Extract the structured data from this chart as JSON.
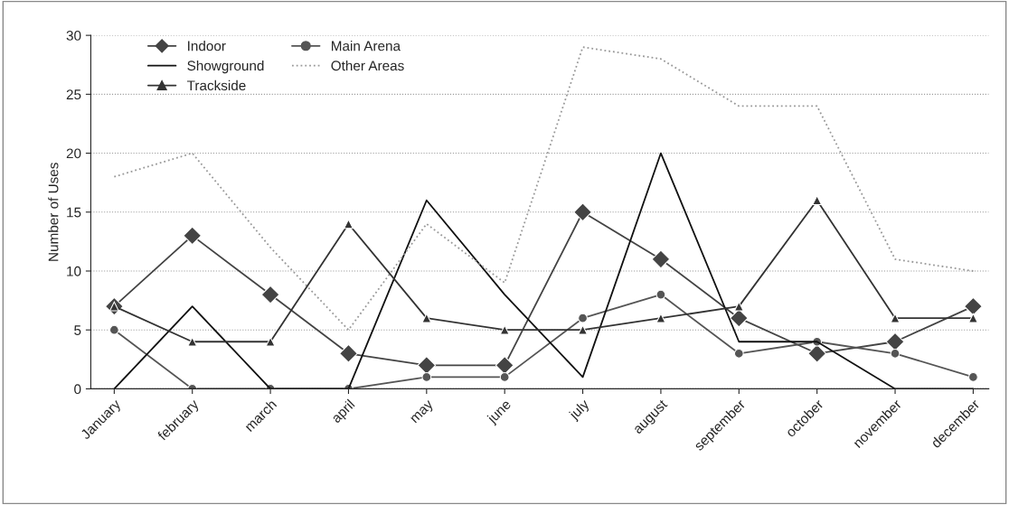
{
  "chart_data": {
    "type": "line",
    "ylabel": "Number of Uses",
    "categories": [
      "January",
      "february",
      "march",
      "april",
      "may",
      "june",
      "july",
      "august",
      "september",
      "october",
      "november",
      "december"
    ],
    "series": [
      {
        "name": "Indoor",
        "color": "#444444",
        "marker": "diamond",
        "values": [
          7,
          13,
          8,
          3,
          2,
          2,
          15,
          11,
          6,
          3,
          4,
          7
        ]
      },
      {
        "name": "Main Arena",
        "color": "#555555",
        "marker": "circle",
        "values": [
          5,
          0,
          0,
          0,
          1,
          1,
          6,
          8,
          3,
          4,
          3,
          1
        ]
      },
      {
        "name": "Showground",
        "color": "#111111",
        "marker": "none",
        "values": [
          0,
          7,
          0,
          0,
          16,
          8,
          1,
          20,
          4,
          4,
          0,
          0
        ]
      },
      {
        "name": "Other Areas",
        "color": "#999999",
        "marker": "none",
        "line_style": "dotted",
        "values": [
          18,
          20,
          12,
          5,
          14,
          9,
          29,
          28,
          24,
          24,
          11,
          10
        ]
      },
      {
        "name": "Trackside",
        "color": "#333333",
        "marker": "triangle",
        "values": [
          7,
          4,
          4,
          14,
          6,
          5,
          5,
          6,
          7,
          16,
          6,
          6
        ]
      }
    ],
    "ylim": [
      0,
      30
    ],
    "yticks": [
      0,
      5,
      10,
      15,
      20,
      25,
      30
    ],
    "grid": "y",
    "legend": "top left"
  }
}
